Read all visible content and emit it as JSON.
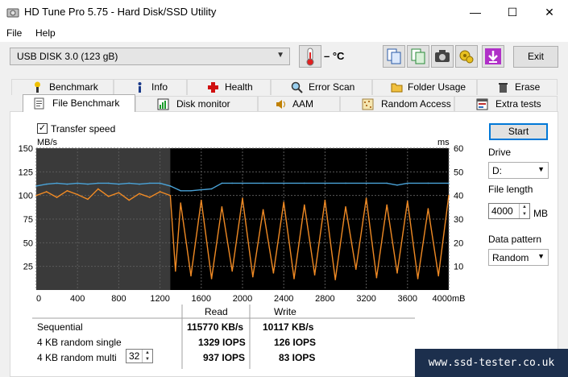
{
  "window": {
    "title": "HD Tune Pro 5.75 - Hard Disk/SSD Utility",
    "minimize": "—",
    "maximize": "☐",
    "close": "✕"
  },
  "menu": {
    "file": "File",
    "help": "Help"
  },
  "toolbar": {
    "drive": "USB DISK 3.0 (123 gB)",
    "temperature": "– °C",
    "exit_label": "Exit"
  },
  "tabs_top": [
    {
      "label": "Benchmark",
      "icon": "benchmark-icon"
    },
    {
      "label": "Info",
      "icon": "info-icon"
    },
    {
      "label": "Health",
      "icon": "health-icon"
    },
    {
      "label": "Error Scan",
      "icon": "error-scan-icon"
    },
    {
      "label": "Folder Usage",
      "icon": "folder-icon"
    },
    {
      "label": "Erase",
      "icon": "erase-icon"
    }
  ],
  "tabs_bottom": [
    {
      "label": "File Benchmark",
      "icon": "file-benchmark-icon"
    },
    {
      "label": "Disk monitor",
      "icon": "disk-monitor-icon"
    },
    {
      "label": "AAM",
      "icon": "aam-icon"
    },
    {
      "label": "Random Access",
      "icon": "random-access-icon"
    },
    {
      "label": "Extra tests",
      "icon": "extra-tests-icon"
    }
  ],
  "options": {
    "transfer_speed_label": "Transfer speed",
    "transfer_speed_checked": true,
    "start_label": "Start",
    "drive_label": "Drive",
    "drive_value": "D:",
    "file_length_label": "File length",
    "file_length_value": "4000",
    "file_length_unit": "MB",
    "data_pattern_label": "Data pattern",
    "data_pattern_value": "Random"
  },
  "results": {
    "read_header": "Read",
    "write_header": "Write",
    "rows": [
      {
        "label": "Sequential",
        "read": "115770 KB/s",
        "write": "10117 KB/s"
      },
      {
        "label": "4 KB random single",
        "read": "1329 IOPS",
        "write": "126 IOPS"
      },
      {
        "label": "4 KB random multi",
        "read": "937 IOPS",
        "write": "83 IOPS"
      }
    ],
    "queue_depth": "32"
  },
  "watermark": "www.ssd-tester.co.uk",
  "chart_data": {
    "type": "line",
    "ylabel_left": "MB/s",
    "ylabel_right": "ms",
    "xunit": "mB",
    "x_ticks": [
      "0",
      "400",
      "800",
      "1200",
      "1600",
      "2000",
      "2400",
      "2800",
      "3200",
      "3600",
      "4000"
    ],
    "y_ticks_left": [
      "150",
      "125",
      "100",
      "75",
      "50",
      "25"
    ],
    "y_ticks_right": [
      "60",
      "50",
      "40",
      "30",
      "20",
      "10"
    ],
    "xlim": [
      0,
      4000
    ],
    "ylim_left": [
      0,
      150
    ],
    "ylim_right": [
      0,
      60
    ],
    "series": [
      {
        "name": "",
        "color": "#4aa3d8",
        "x": [
          0,
          100,
          200,
          300,
          400,
          500,
          600,
          700,
          800,
          900,
          1000,
          1100,
          1200,
          1300,
          1400,
          1500,
          1600,
          1700,
          1800,
          1900,
          2000,
          2200,
          2400,
          2600,
          2800,
          3000,
          3200,
          3400,
          3500,
          3600,
          3800,
          4000
        ],
        "values": [
          110,
          112,
          113,
          112,
          113,
          112,
          113,
          113,
          112,
          113,
          112,
          113,
          113,
          110,
          105,
          105,
          106,
          107,
          113,
          113,
          113,
          113,
          113,
          113,
          113,
          113,
          113,
          113,
          111,
          113,
          113,
          113
        ]
      },
      {
        "name": "",
        "color": "#f08a24",
        "x": [
          0,
          100,
          200,
          300,
          400,
          500,
          600,
          700,
          800,
          900,
          1000,
          1100,
          1200,
          1300,
          1350,
          1400,
          1500,
          1600,
          1700,
          1800,
          1900,
          2000,
          2100,
          2200,
          2300,
          2400,
          2500,
          2600,
          2700,
          2800,
          2900,
          3000,
          3100,
          3200,
          3300,
          3400,
          3500,
          3600,
          3700,
          3800,
          3900,
          4000
        ],
        "values": [
          100,
          104,
          98,
          105,
          101,
          96,
          107,
          99,
          103,
          95,
          102,
          98,
          104,
          100,
          20,
          92,
          15,
          95,
          12,
          88,
          20,
          97,
          14,
          85,
          18,
          93,
          12,
          90,
          16,
          95,
          11,
          88,
          22,
          97,
          13,
          90,
          18,
          94,
          12,
          86,
          15,
          100
        ]
      }
    ]
  }
}
